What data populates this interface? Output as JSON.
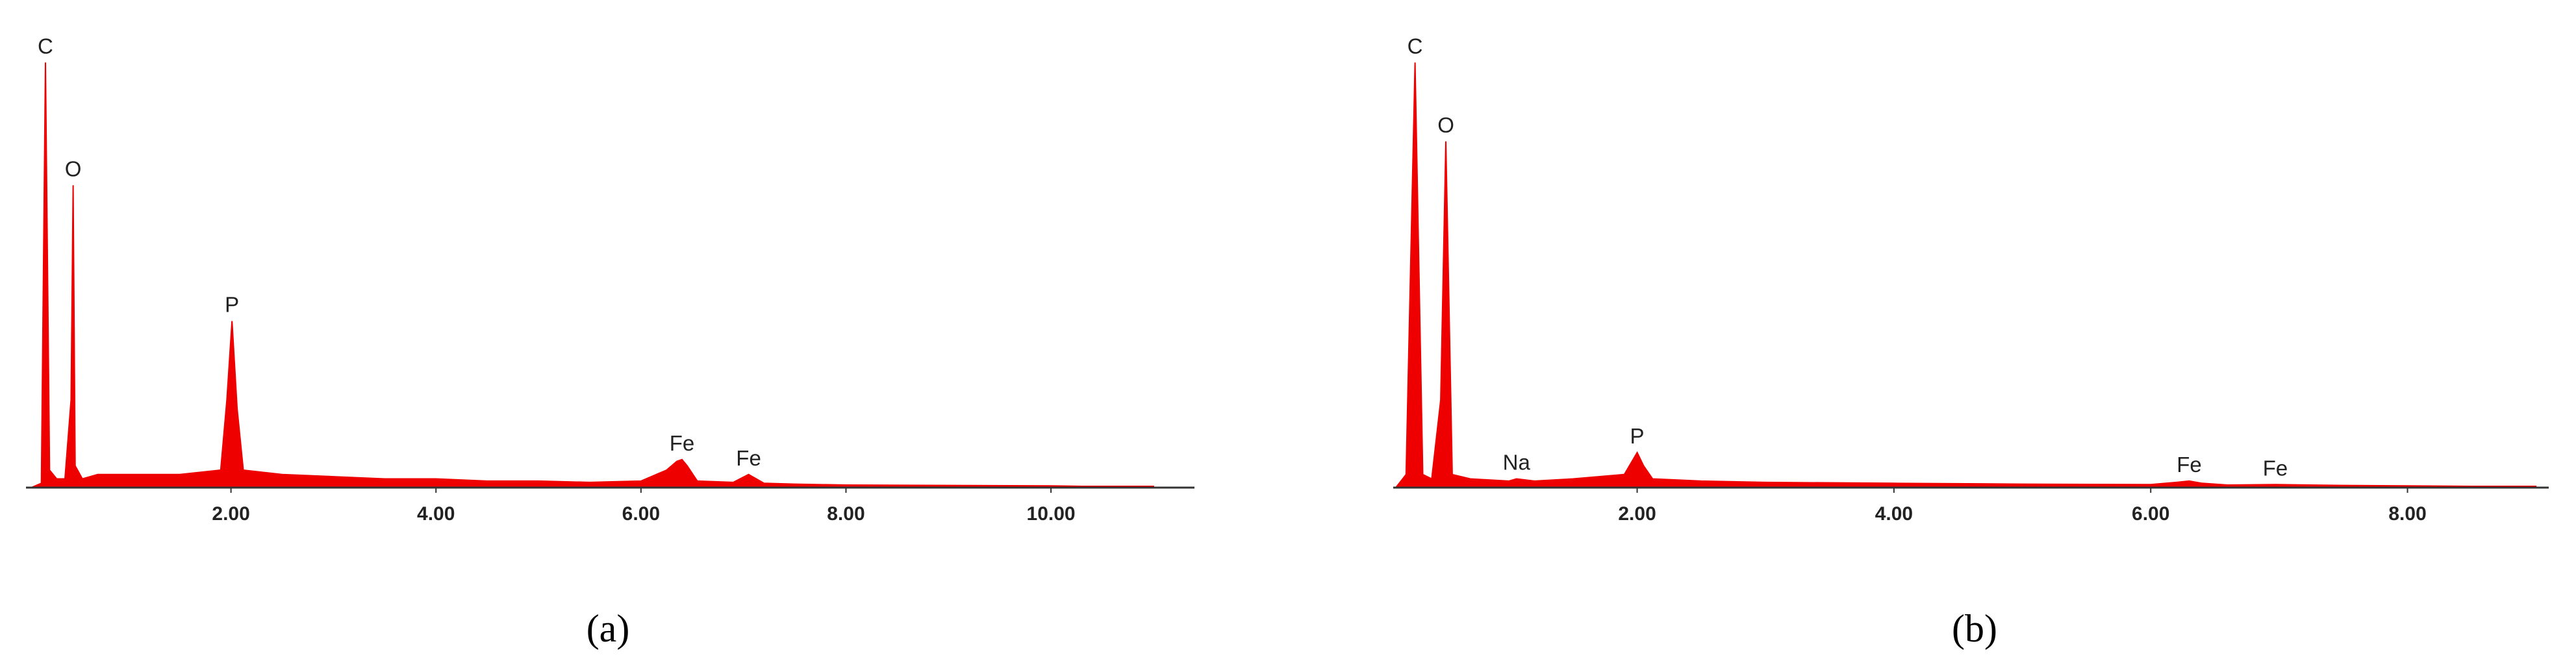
{
  "chart_data": [
    {
      "type": "area",
      "caption": "(a)",
      "color": "#ee0000",
      "xlim": [
        0,
        11.4
      ],
      "ylim": [
        0,
        100
      ],
      "xticks": [
        {
          "value": 2,
          "label": "2.00"
        },
        {
          "value": 4,
          "label": "4.00"
        },
        {
          "value": 6,
          "label": "6.00"
        },
        {
          "value": 8,
          "label": "8.00"
        },
        {
          "value": 10,
          "label": "10.00"
        }
      ],
      "x": [
        0.05,
        0.15,
        0.19,
        0.23,
        0.3,
        0.38,
        0.44,
        0.46,
        0.48,
        0.55,
        0.7,
        1.0,
        1.5,
        1.9,
        1.96,
        2.01,
        2.06,
        2.12,
        2.5,
        3.0,
        3.5,
        4.0,
        4.5,
        5.0,
        5.5,
        6.0,
        6.25,
        6.35,
        6.4,
        6.45,
        6.55,
        6.9,
        7.05,
        7.2,
        7.5,
        8.0,
        9.0,
        10.0,
        10.3,
        11.0
      ],
      "values": [
        0,
        1,
        97,
        4,
        2,
        2,
        20,
        69,
        5,
        2,
        3,
        3,
        3,
        4,
        20,
        38,
        18,
        4,
        3,
        2.5,
        2,
        2,
        1.5,
        1.5,
        1.2,
        1.5,
        4,
        6,
        6.4,
        5,
        1.5,
        1.2,
        3,
        1,
        0.8,
        0.6,
        0.5,
        0.4,
        0.3,
        0.3
      ],
      "annotations": [
        {
          "text": "C",
          "x": 0.19,
          "y": 97
        },
        {
          "text": "O",
          "x": 0.46,
          "y": 69
        },
        {
          "text": "P",
          "x": 2.01,
          "y": 38
        },
        {
          "text": "Fe",
          "x": 6.4,
          "y": 6.4
        },
        {
          "text": "Fe",
          "x": 7.05,
          "y": 3
        }
      ]
    },
    {
      "type": "area",
      "caption": "(b)",
      "color": "#ee0000",
      "xlim": [
        0.1,
        9.1
      ],
      "ylim": [
        0,
        100
      ],
      "xticks": [
        {
          "value": 2,
          "label": "2.00"
        },
        {
          "value": 4,
          "label": "4.00"
        },
        {
          "value": 6,
          "label": "6.00"
        },
        {
          "value": 8,
          "label": "8.00"
        }
      ],
      "x": [
        0.12,
        0.2,
        0.27,
        0.33,
        0.4,
        0.47,
        0.51,
        0.56,
        0.7,
        1.0,
        1.06,
        1.2,
        1.5,
        1.9,
        1.96,
        2.0,
        2.05,
        2.12,
        2.5,
        3.0,
        4.0,
        5.0,
        6.0,
        6.2,
        6.3,
        6.4,
        6.6,
        6.97,
        7.5,
        8.0,
        8.5,
        9.0
      ],
      "values": [
        0,
        3,
        97,
        3,
        2,
        20,
        79,
        3,
        2,
        1.5,
        2,
        1.5,
        2,
        3,
        6,
        8,
        5,
        2,
        1.5,
        1.2,
        1,
        0.8,
        0.7,
        1.2,
        1.5,
        1,
        0.6,
        0.7,
        0.5,
        0.4,
        0.3,
        0.3
      ],
      "annotations": [
        {
          "text": "C",
          "x": 0.27,
          "y": 97
        },
        {
          "text": "O",
          "x": 0.51,
          "y": 79
        },
        {
          "text": "Na",
          "x": 1.06,
          "y": 2
        },
        {
          "text": "P",
          "x": 2.0,
          "y": 8
        },
        {
          "text": "Fe",
          "x": 6.3,
          "y": 1.5
        },
        {
          "text": "Fe",
          "x": 6.97,
          "y": 0.7
        }
      ]
    }
  ]
}
